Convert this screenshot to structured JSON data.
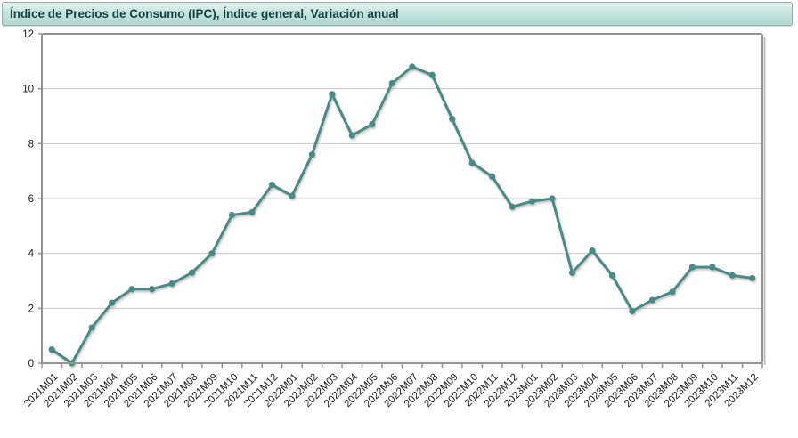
{
  "header": {
    "title": "Índice de Precios de Consumo (IPC), Índice general, Variación anual"
  },
  "colors": {
    "line": "#4a8a85",
    "marker": "#4a8a85",
    "grid": "#c9c9c9",
    "frame": "#949494",
    "frame_shadow": "#bcbcbc",
    "axis_text": "#1a1a1a",
    "header_text": "#15413f",
    "header_bg_top": "#e4f3ef",
    "header_bg_bottom": "#b2d8d1",
    "plot_bg": "#ffffff"
  },
  "chart_data": {
    "type": "line",
    "title": "Índice de Precios de Consumo (IPC), Índice general, Variación anual",
    "xlabel": "",
    "ylabel": "",
    "ylim": [
      0,
      12
    ],
    "yticks": [
      0,
      2,
      4,
      6,
      8,
      10,
      12
    ],
    "grid": true,
    "legend": false,
    "categories": [
      "2021M01",
      "2021M02",
      "2021M03",
      "2021M04",
      "2021M05",
      "2021M06",
      "2021M07",
      "2021M08",
      "2021M09",
      "2021M10",
      "2021M11",
      "2021M12",
      "2022M01",
      "2022M02",
      "2022M03",
      "2022M04",
      "2022M05",
      "2022M06",
      "2022M07",
      "2022M08",
      "2022M09",
      "2022M10",
      "2022M11",
      "2022M12",
      "2023M01",
      "2023M02",
      "2023M03",
      "2023M04",
      "2023M05",
      "2023M06",
      "2023M07",
      "2023M08",
      "2023M09",
      "2023M10",
      "2023M11",
      "2023M12"
    ],
    "values": [
      0.5,
      0.0,
      1.3,
      2.2,
      2.7,
      2.7,
      2.9,
      3.3,
      4.0,
      5.4,
      5.5,
      6.5,
      6.1,
      7.6,
      9.8,
      8.3,
      8.7,
      10.2,
      10.8,
      10.5,
      8.9,
      7.3,
      6.8,
      5.7,
      5.9,
      6.0,
      3.3,
      4.1,
      3.2,
      1.9,
      2.3,
      2.6,
      3.5,
      3.5,
      3.2,
      3.1
    ]
  }
}
